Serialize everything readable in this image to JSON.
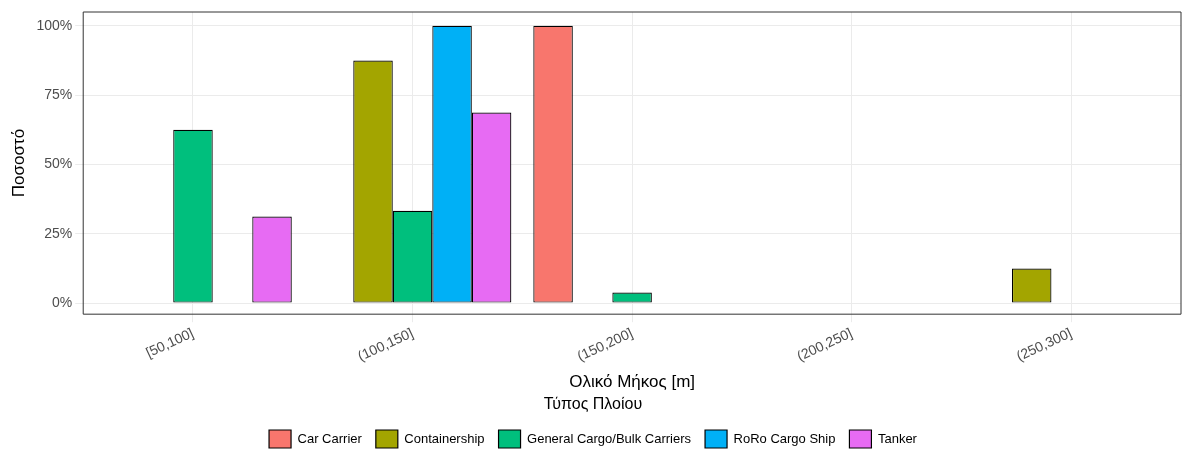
{
  "chart_data": {
    "type": "bar",
    "xlabel": "Ολικό Μήκος [m]",
    "ylabel": "Ποσοστό",
    "legend_title": "Τύπος Πλοίου",
    "legend": "bottom",
    "grid": true,
    "categories": [
      "[50,100]",
      "(100,150]",
      "(150,200]",
      "(200,250]",
      "(250,300]"
    ],
    "ylim": [
      -4,
      105
    ],
    "yticks": [
      {
        "value": 0,
        "label": "0%"
      },
      {
        "value": 25,
        "label": "25%"
      },
      {
        "value": 50,
        "label": "50%"
      },
      {
        "value": 75,
        "label": "75%"
      },
      {
        "value": 100,
        "label": "100%"
      }
    ],
    "series": [
      {
        "name": "Car Carrier",
        "color": "#f8766d",
        "values": [
          0,
          0,
          100,
          0,
          0
        ]
      },
      {
        "name": "Containership",
        "color": "#a3a500",
        "values": [
          0,
          87.5,
          0,
          0,
          12.5
        ]
      },
      {
        "name": "General Cargo/Bulk Carriers",
        "color": "#00bf7d",
        "values": [
          62.5,
          33.3,
          3.8,
          0,
          0
        ]
      },
      {
        "name": "RoRo Cargo Ship",
        "color": "#00b0f6",
        "values": [
          0,
          100,
          0,
          0,
          0
        ]
      },
      {
        "name": "Tanker",
        "color": "#e76bf3",
        "values": [
          31.25,
          68.75,
          0,
          0,
          0
        ]
      }
    ]
  }
}
